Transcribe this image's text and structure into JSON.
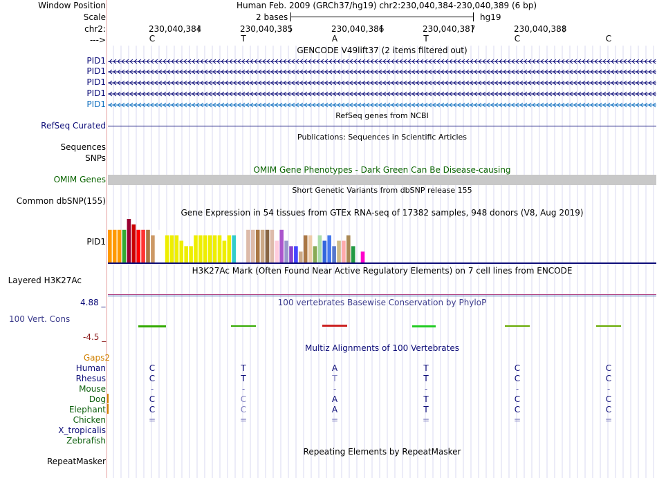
{
  "header": {
    "window_position_label": "Window Position",
    "position_text": "Human Feb. 2009 (GRCh37/hg19)   chr2:230,040,384-230,040,389 (6 bp)",
    "scale_label": "Scale",
    "scale_value": "2 bases",
    "scale_assembly": "hg19",
    "chrom_label": "chr2:",
    "strand_label": "--->",
    "coords": [
      "230,040,384",
      "230,040,385",
      "230,040,386",
      "230,040,387",
      "230,040,388"
    ],
    "bases": [
      "C",
      "T",
      "A",
      "T",
      "C",
      "C"
    ]
  },
  "gencode": {
    "title": "GENCODE V49lift37 (2 items filtered out)",
    "items": [
      "PID1",
      "PID1",
      "PID1",
      "PID1",
      "PID1"
    ]
  },
  "refseq": {
    "title": "RefSeq genes from NCBI",
    "label": "RefSeq Curated"
  },
  "publications": {
    "title": "Publications: Sequences in Scientific Articles",
    "labels": [
      "Sequences",
      "SNPs"
    ]
  },
  "omim": {
    "title": "OMIM Gene Phenotypes - Dark Green Can Be Disease-causing",
    "label": "OMIM Genes"
  },
  "dbsnp": {
    "title": "Short Genetic Variants from dbSNP release 155",
    "label": "Common dbSNP(155)"
  },
  "gtex": {
    "title": "Gene Expression in 54 tissues from GTEx RNA-seq of 17382 samples, 948 donors (V8, Aug 2019)",
    "label": "PID1"
  },
  "h3k27ac": {
    "title": "H3K27Ac Mark (Often Found Near Active Regulatory Elements) on 7 cell lines from ENCODE",
    "label": "Layered H3K27Ac"
  },
  "conservation": {
    "title": "100 vertebrates Basewise Conservation by PhyloP",
    "label": "100 Vert. Cons",
    "max": "4.88 _",
    "min": "-4.5 _"
  },
  "multiz": {
    "title": "Multiz Alignments of 100 Vertebrates",
    "gaps_label": "Gaps2",
    "species": [
      {
        "name": "Human",
        "bases": [
          "C",
          "T",
          "A",
          "T",
          "C",
          "C"
        ]
      },
      {
        "name": "Rhesus",
        "bases": [
          "C",
          "T",
          "T",
          "T",
          "C",
          "C"
        ]
      },
      {
        "name": "Mouse",
        "bases": [
          "-",
          "-",
          "-",
          "-",
          "-",
          "-"
        ]
      },
      {
        "name": "Dog",
        "bases": [
          "C",
          "C",
          "A",
          "T",
          "C",
          "C"
        ]
      },
      {
        "name": "Elephant",
        "bases": [
          "C",
          "C",
          "A",
          "T",
          "C",
          "C"
        ]
      },
      {
        "name": "Chicken",
        "bases": [
          "=",
          "=",
          "=",
          "=",
          "=",
          "="
        ]
      },
      {
        "name": "X_tropicalis",
        "bases": [
          "",
          "",
          "",
          "",
          "",
          ""
        ]
      },
      {
        "name": "Zebrafish",
        "bases": [
          "",
          "",
          "",
          "",
          "",
          ""
        ]
      }
    ]
  },
  "repeatmasker": {
    "title": "Repeating Elements by RepeatMasker",
    "label": "RepeatMasker"
  },
  "colors": {
    "navy": "#0c0c78",
    "omim_green": "#0a6400",
    "gaps_orange": "#d08000",
    "cons_max": "#0c0c78",
    "cons_min": "#8b1a1a"
  },
  "chart_data": {
    "type": "bar",
    "title": "Gene Expression in 54 tissues from GTEx RNA-seq of 17382 samples, 948 donors (V8, Aug 2019)",
    "values": [
      6,
      6,
      6,
      6,
      8,
      7,
      6,
      6,
      6,
      5,
      6,
      0,
      5,
      5,
      5,
      4,
      3,
      3,
      5,
      5,
      5,
      5,
      5,
      5,
      4,
      5,
      5,
      5,
      0,
      6,
      6,
      6,
      6,
      6,
      6,
      4,
      6,
      4,
      3,
      3,
      2,
      5,
      5,
      3,
      5,
      4,
      5,
      3,
      4,
      4,
      5,
      3,
      0,
      2
    ]
  }
}
